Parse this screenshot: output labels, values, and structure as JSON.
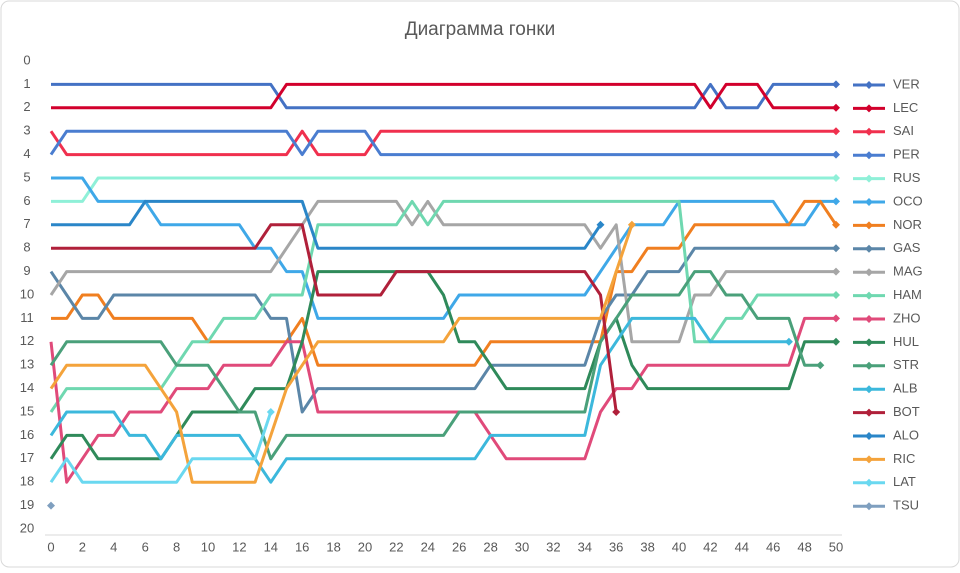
{
  "chart_data": {
    "type": "line",
    "title": "Диаграмма гонки",
    "x": [
      0,
      1,
      2,
      3,
      4,
      5,
      6,
      7,
      8,
      9,
      10,
      11,
      12,
      13,
      14,
      15,
      16,
      17,
      18,
      19,
      20,
      21,
      22,
      23,
      24,
      25,
      26,
      27,
      28,
      29,
      30,
      31,
      32,
      33,
      34,
      35,
      36,
      37,
      38,
      39,
      40,
      41,
      42,
      43,
      44,
      45,
      46,
      47,
      48,
      49,
      50
    ],
    "xlim": [
      0,
      50
    ],
    "xticks": [
      0,
      2,
      4,
      6,
      8,
      10,
      12,
      14,
      16,
      18,
      20,
      22,
      24,
      26,
      28,
      30,
      32,
      34,
      36,
      38,
      40,
      42,
      44,
      46,
      48,
      50
    ],
    "ylim": [
      20,
      0
    ],
    "yticks": [
      0,
      1,
      2,
      3,
      4,
      5,
      6,
      7,
      8,
      9,
      10,
      11,
      12,
      13,
      14,
      15,
      16,
      17,
      18,
      19,
      20
    ],
    "series": [
      {
        "name": "VER",
        "color": "#4472c4",
        "values": [
          1,
          1,
          1,
          1,
          1,
          1,
          1,
          1,
          1,
          1,
          1,
          1,
          1,
          1,
          1,
          2,
          2,
          2,
          2,
          2,
          2,
          2,
          2,
          2,
          2,
          2,
          2,
          2,
          2,
          2,
          2,
          2,
          2,
          2,
          2,
          2,
          2,
          2,
          2,
          2,
          2,
          2,
          1,
          2,
          2,
          2,
          1,
          1,
          1,
          1,
          1
        ]
      },
      {
        "name": "LEC",
        "color": "#d2002c",
        "values": [
          2,
          2,
          2,
          2,
          2,
          2,
          2,
          2,
          2,
          2,
          2,
          2,
          2,
          2,
          2,
          1,
          1,
          1,
          1,
          1,
          1,
          1,
          1,
          1,
          1,
          1,
          1,
          1,
          1,
          1,
          1,
          1,
          1,
          1,
          1,
          1,
          1,
          1,
          1,
          1,
          1,
          1,
          2,
          1,
          1,
          1,
          2,
          2,
          2,
          2,
          2
        ]
      },
      {
        "name": "SAI",
        "color": "#f0304e",
        "values": [
          3,
          4,
          4,
          4,
          4,
          4,
          4,
          4,
          4,
          4,
          4,
          4,
          4,
          4,
          4,
          4,
          3,
          4,
          4,
          4,
          4,
          3,
          3,
          3,
          3,
          3,
          3,
          3,
          3,
          3,
          3,
          3,
          3,
          3,
          3,
          3,
          3,
          3,
          3,
          3,
          3,
          3,
          3,
          3,
          3,
          3,
          3,
          3,
          3,
          3,
          3
        ]
      },
      {
        "name": "PER",
        "color": "#4a7dd0",
        "values": [
          4,
          3,
          3,
          3,
          3,
          3,
          3,
          3,
          3,
          3,
          3,
          3,
          3,
          3,
          3,
          3,
          4,
          3,
          3,
          3,
          3,
          4,
          4,
          4,
          4,
          4,
          4,
          4,
          4,
          4,
          4,
          4,
          4,
          4,
          4,
          4,
          4,
          4,
          4,
          4,
          4,
          4,
          4,
          4,
          4,
          4,
          4,
          4,
          4,
          4,
          4
        ]
      },
      {
        "name": "RUS",
        "color": "#8ff0d8",
        "values": [
          6,
          6,
          6,
          5,
          5,
          5,
          5,
          5,
          5,
          5,
          5,
          5,
          5,
          5,
          5,
          5,
          5,
          5,
          5,
          5,
          5,
          5,
          5,
          5,
          5,
          5,
          5,
          5,
          5,
          5,
          5,
          5,
          5,
          5,
          5,
          5,
          5,
          5,
          5,
          5,
          5,
          5,
          5,
          5,
          5,
          5,
          5,
          5,
          5,
          5,
          5
        ]
      },
      {
        "name": "OCO",
        "color": "#3fa8e8",
        "values": [
          5,
          5,
          5,
          6,
          6,
          6,
          6,
          7,
          7,
          7,
          7,
          7,
          7,
          8,
          8,
          9,
          9,
          11,
          11,
          11,
          11,
          11,
          11,
          11,
          11,
          11,
          10,
          10,
          10,
          10,
          10,
          10,
          10,
          10,
          10,
          9,
          8,
          7,
          7,
          7,
          6,
          6,
          6,
          6,
          6,
          6,
          6,
          7,
          7,
          6,
          6
        ]
      },
      {
        "name": "NOR",
        "color": "#f07f20",
        "values": [
          11,
          11,
          10,
          10,
          11,
          11,
          11,
          11,
          11,
          11,
          12,
          12,
          12,
          12,
          12,
          12,
          11,
          13,
          13,
          13,
          13,
          13,
          13,
          13,
          13,
          13,
          13,
          13,
          12,
          12,
          12,
          12,
          12,
          12,
          12,
          12,
          9,
          9,
          8,
          8,
          8,
          7,
          7,
          7,
          7,
          7,
          7,
          7,
          6,
          6,
          7
        ]
      },
      {
        "name": "GAS",
        "color": "#5b86a8",
        "values": [
          9,
          10,
          11,
          11,
          10,
          10,
          10,
          10,
          10,
          10,
          10,
          10,
          10,
          10,
          11,
          11,
          15,
          14,
          14,
          14,
          14,
          14,
          14,
          14,
          14,
          14,
          14,
          14,
          13,
          13,
          13,
          13,
          13,
          13,
          13,
          11,
          10,
          10,
          9,
          9,
          9,
          8,
          8,
          8,
          8,
          8,
          8,
          8,
          8,
          8,
          8
        ]
      },
      {
        "name": "MAG",
        "color": "#a6a6a6",
        "values": [
          10,
          9,
          9,
          9,
          9,
          9,
          9,
          9,
          9,
          9,
          9,
          9,
          9,
          9,
          9,
          8,
          7,
          6,
          6,
          6,
          6,
          6,
          6,
          7,
          6,
          7,
          7,
          7,
          7,
          7,
          7,
          7,
          7,
          7,
          7,
          8,
          7,
          12,
          12,
          12,
          12,
          10,
          10,
          9,
          9,
          9,
          9,
          9,
          9,
          9,
          9
        ]
      },
      {
        "name": "HAM",
        "color": "#6fd8b0",
        "values": [
          15,
          14,
          14,
          14,
          14,
          14,
          14,
          14,
          13,
          12,
          12,
          11,
          11,
          11,
          10,
          10,
          10,
          7,
          7,
          7,
          7,
          7,
          7,
          6,
          7,
          6,
          6,
          6,
          6,
          6,
          6,
          6,
          6,
          6,
          6,
          6,
          6,
          6,
          6,
          6,
          6,
          12,
          12,
          11,
          11,
          10,
          10,
          10,
          10,
          10,
          10
        ]
      },
      {
        "name": "ZHO",
        "color": "#e04a7a",
        "values": [
          12,
          18,
          17,
          16,
          16,
          15,
          15,
          15,
          14,
          14,
          14,
          13,
          13,
          13,
          13,
          12,
          12,
          15,
          15,
          15,
          15,
          15,
          15,
          15,
          15,
          15,
          15,
          15,
          16,
          17,
          17,
          17,
          17,
          17,
          17,
          15,
          14,
          14,
          13,
          13,
          13,
          13,
          13,
          13,
          13,
          13,
          13,
          13,
          11,
          11,
          11
        ]
      },
      {
        "name": "HUL",
        "color": "#2f8a5a",
        "values": [
          17,
          16,
          16,
          17,
          17,
          17,
          17,
          17,
          16,
          15,
          15,
          15,
          15,
          14,
          14,
          14,
          12,
          9,
          9,
          9,
          9,
          9,
          9,
          9,
          9,
          10,
          12,
          12,
          13,
          14,
          14,
          14,
          14,
          14,
          14,
          12,
          11,
          13,
          14,
          14,
          14,
          14,
          14,
          14,
          14,
          14,
          14,
          14,
          12,
          12,
          12
        ]
      },
      {
        "name": "STR",
        "color": "#4aa07a",
        "values": [
          13,
          12,
          12,
          12,
          12,
          12,
          12,
          12,
          13,
          13,
          13,
          14,
          15,
          15,
          17,
          16,
          16,
          16,
          16,
          16,
          16,
          16,
          16,
          16,
          16,
          16,
          15,
          15,
          15,
          15,
          15,
          15,
          15,
          15,
          15,
          12,
          11,
          10,
          10,
          10,
          10,
          9,
          9,
          10,
          10,
          11,
          11,
          11,
          13,
          13,
          null
        ]
      },
      {
        "name": "ALB",
        "color": "#3cb8dc",
        "values": [
          16,
          15,
          15,
          15,
          15,
          16,
          16,
          17,
          16,
          16,
          16,
          16,
          16,
          17,
          18,
          17,
          17,
          17,
          17,
          17,
          17,
          17,
          17,
          17,
          17,
          17,
          17,
          17,
          16,
          16,
          16,
          16,
          16,
          16,
          16,
          13,
          12,
          11,
          11,
          11,
          11,
          11,
          12,
          12,
          12,
          12,
          12,
          12,
          null,
          null,
          null
        ]
      },
      {
        "name": "BOT",
        "color": "#b0203a",
        "values": [
          8,
          8,
          8,
          8,
          8,
          8,
          8,
          8,
          8,
          8,
          8,
          8,
          8,
          8,
          7,
          7,
          7,
          10,
          10,
          10,
          10,
          10,
          9,
          9,
          9,
          9,
          9,
          9,
          9,
          9,
          9,
          9,
          9,
          9,
          9,
          10,
          15,
          null,
          null,
          null,
          null,
          null,
          null,
          null,
          null,
          null,
          null,
          null,
          null,
          null,
          null
        ]
      },
      {
        "name": "ALO",
        "color": "#2a86c8",
        "values": [
          7,
          7,
          7,
          7,
          7,
          7,
          6,
          6,
          6,
          6,
          6,
          6,
          6,
          6,
          6,
          6,
          6,
          8,
          8,
          8,
          8,
          8,
          8,
          8,
          8,
          8,
          8,
          8,
          8,
          8,
          8,
          8,
          8,
          8,
          8,
          7,
          null,
          null,
          null,
          null,
          null,
          null,
          null,
          null,
          null,
          null,
          null,
          null,
          null,
          null,
          null
        ]
      },
      {
        "name": "RIC",
        "color": "#f4a33b",
        "values": [
          14,
          13,
          13,
          13,
          13,
          13,
          13,
          14,
          15,
          18,
          18,
          18,
          18,
          18,
          16,
          14,
          13,
          12,
          12,
          12,
          12,
          12,
          12,
          12,
          12,
          12,
          11,
          11,
          11,
          11,
          11,
          11,
          11,
          11,
          11,
          11,
          9,
          7,
          null,
          null,
          null,
          null,
          null,
          null,
          null,
          null,
          null,
          null,
          null,
          null,
          null
        ]
      },
      {
        "name": "LAT",
        "color": "#6ad8f0",
        "values": [
          18,
          17,
          18,
          18,
          18,
          18,
          18,
          18,
          18,
          17,
          17,
          17,
          17,
          17,
          15,
          null,
          null,
          null,
          null,
          null,
          null,
          null,
          null,
          null,
          null,
          null,
          null,
          null,
          null,
          null,
          null,
          null,
          null,
          null,
          null,
          null,
          null,
          null,
          null,
          null,
          null,
          null,
          null,
          null,
          null,
          null,
          null,
          null,
          null,
          null,
          null
        ]
      },
      {
        "name": "TSU",
        "color": "#7f9fbf",
        "values": [
          19,
          null,
          null,
          null,
          null,
          null,
          null,
          null,
          null,
          null,
          null,
          null,
          null,
          null,
          null,
          null,
          null,
          null,
          null,
          null,
          null,
          null,
          null,
          null,
          null,
          null,
          null,
          null,
          null,
          null,
          null,
          null,
          null,
          null,
          null,
          null,
          null,
          null,
          null,
          null,
          null,
          null,
          null,
          null,
          null,
          null,
          null,
          null,
          null,
          null,
          null
        ]
      }
    ]
  }
}
